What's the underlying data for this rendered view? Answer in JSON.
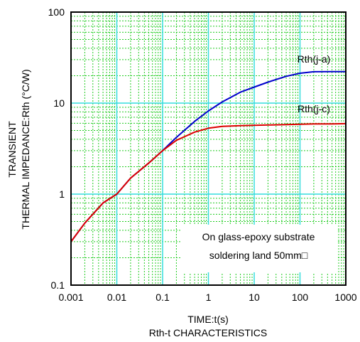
{
  "chart_data": {
    "type": "line",
    "title": "Rth-t CHARACTERISTICS",
    "xlabel": "TIME:t(s)",
    "ylabel_line1": "TRANSIENT",
    "ylabel_line2": "THERMAL IMPEDANCE:Rth (°C/W)",
    "x_scale": "log",
    "y_scale": "log",
    "xlim": [
      0.001,
      1000
    ],
    "ylim": [
      0.1,
      100
    ],
    "x_ticks": [
      "0.001",
      "0.01",
      "0.1",
      "1",
      "10",
      "100",
      "1000"
    ],
    "y_ticks": [
      "0.1",
      "1",
      "10",
      "100"
    ],
    "grid": true,
    "annotation_line1": "On glass-epoxy substrate",
    "annotation_line2": "soldering land 50mm□",
    "series": [
      {
        "name": "Rth(j-a)",
        "color": "#0000cc",
        "x": [
          0.001,
          0.002,
          0.005,
          0.01,
          0.02,
          0.05,
          0.1,
          0.2,
          0.5,
          1,
          2,
          5,
          10,
          20,
          50,
          100,
          200,
          500,
          1000
        ],
        "y": [
          0.3,
          0.48,
          0.8,
          1.0,
          1.5,
          2.2,
          3.0,
          4.2,
          6.3,
          8.2,
          10.3,
          13.2,
          15.0,
          17.0,
          19.7,
          21.3,
          22.1,
          22.2,
          22.2
        ]
      },
      {
        "name": "Rth(j-c)",
        "color": "#dd0000",
        "x": [
          0.001,
          0.002,
          0.005,
          0.01,
          0.02,
          0.05,
          0.1,
          0.2,
          0.5,
          1,
          2,
          5,
          10,
          20,
          50,
          100,
          200,
          500,
          1000
        ],
        "y": [
          0.3,
          0.48,
          0.8,
          1.0,
          1.5,
          2.2,
          3.0,
          3.9,
          4.8,
          5.3,
          5.55,
          5.65,
          5.7,
          5.75,
          5.8,
          5.85,
          5.9,
          5.9,
          5.95
        ]
      }
    ]
  }
}
